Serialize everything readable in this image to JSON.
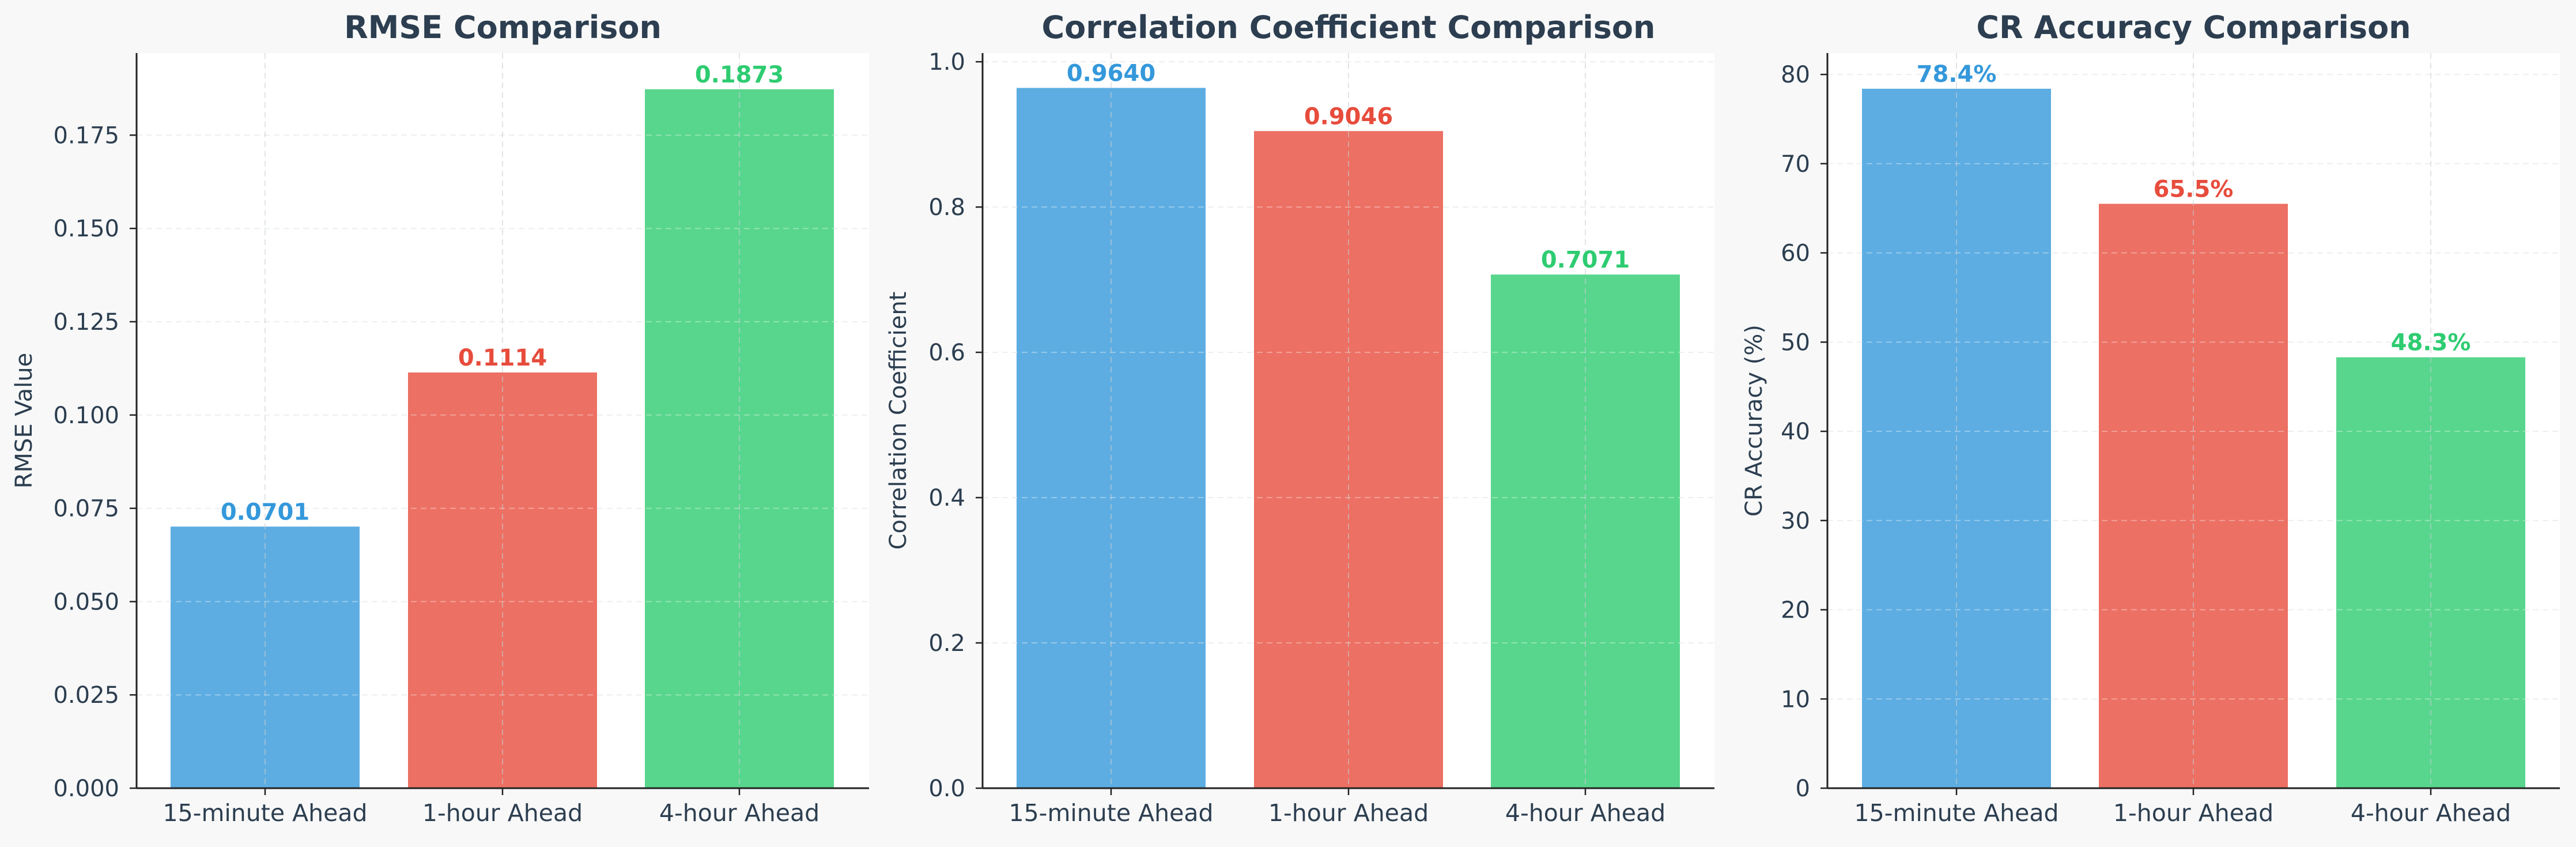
{
  "figure": {
    "background": "#f8f8f8",
    "panel_background": "#ffffff",
    "text_color": "#2c3e50"
  },
  "chart_data": [
    {
      "type": "bar",
      "title": "RMSE Comparison",
      "xlabel": "",
      "ylabel": "RMSE Value",
      "categories": [
        "15-minute Ahead",
        "1-hour Ahead",
        "4-hour Ahead"
      ],
      "values": [
        0.0701,
        0.1114,
        0.1873
      ],
      "value_labels": [
        "0.0701",
        "0.1114",
        "0.1873"
      ],
      "ylim": [
        0,
        0.197
      ],
      "yticks": [
        0,
        0.025,
        0.05,
        0.075,
        0.1,
        0.125,
        0.15,
        0.175
      ],
      "ytick_labels": [
        "0.000",
        "0.025",
        "0.050",
        "0.075",
        "0.100",
        "0.125",
        "0.150",
        "0.175"
      ],
      "bar_colors": [
        "#5dade2",
        "#ec7063",
        "#58d68d"
      ],
      "label_colors": [
        "#3498db",
        "#e74c3c",
        "#2ecc71"
      ],
      "grid": true
    },
    {
      "type": "bar",
      "title": "Correlation Coefficient Comparison",
      "xlabel": "",
      "ylabel": "Correlation Coefficient",
      "categories": [
        "15-minute Ahead",
        "1-hour Ahead",
        "4-hour Ahead"
      ],
      "values": [
        0.964,
        0.9046,
        0.7071
      ],
      "value_labels": [
        "0.9640",
        "0.9046",
        "0.7071"
      ],
      "ylim": [
        0,
        1.012
      ],
      "yticks": [
        0,
        0.2,
        0.4,
        0.6,
        0.8,
        1.0
      ],
      "ytick_labels": [
        "0.0",
        "0.2",
        "0.4",
        "0.6",
        "0.8",
        "1.0"
      ],
      "bar_colors": [
        "#5dade2",
        "#ec7063",
        "#58d68d"
      ],
      "label_colors": [
        "#3498db",
        "#e74c3c",
        "#2ecc71"
      ],
      "grid": true
    },
    {
      "type": "bar",
      "title": "CR Accuracy Comparison",
      "xlabel": "",
      "ylabel": "CR Accuracy (%)",
      "categories": [
        "15-minute Ahead",
        "1-hour Ahead",
        "4-hour Ahead"
      ],
      "values": [
        78.4,
        65.5,
        48.3
      ],
      "value_labels": [
        "78.4%",
        "65.5%",
        "48.3%"
      ],
      "ylim": [
        0,
        82.4
      ],
      "yticks": [
        0,
        10,
        20,
        30,
        40,
        50,
        60,
        70,
        80
      ],
      "ytick_labels": [
        "0",
        "10",
        "20",
        "30",
        "40",
        "50",
        "60",
        "70",
        "80"
      ],
      "bar_colors": [
        "#5dade2",
        "#ec7063",
        "#58d68d"
      ],
      "label_colors": [
        "#3498db",
        "#e74c3c",
        "#2ecc71"
      ],
      "grid": true
    }
  ]
}
